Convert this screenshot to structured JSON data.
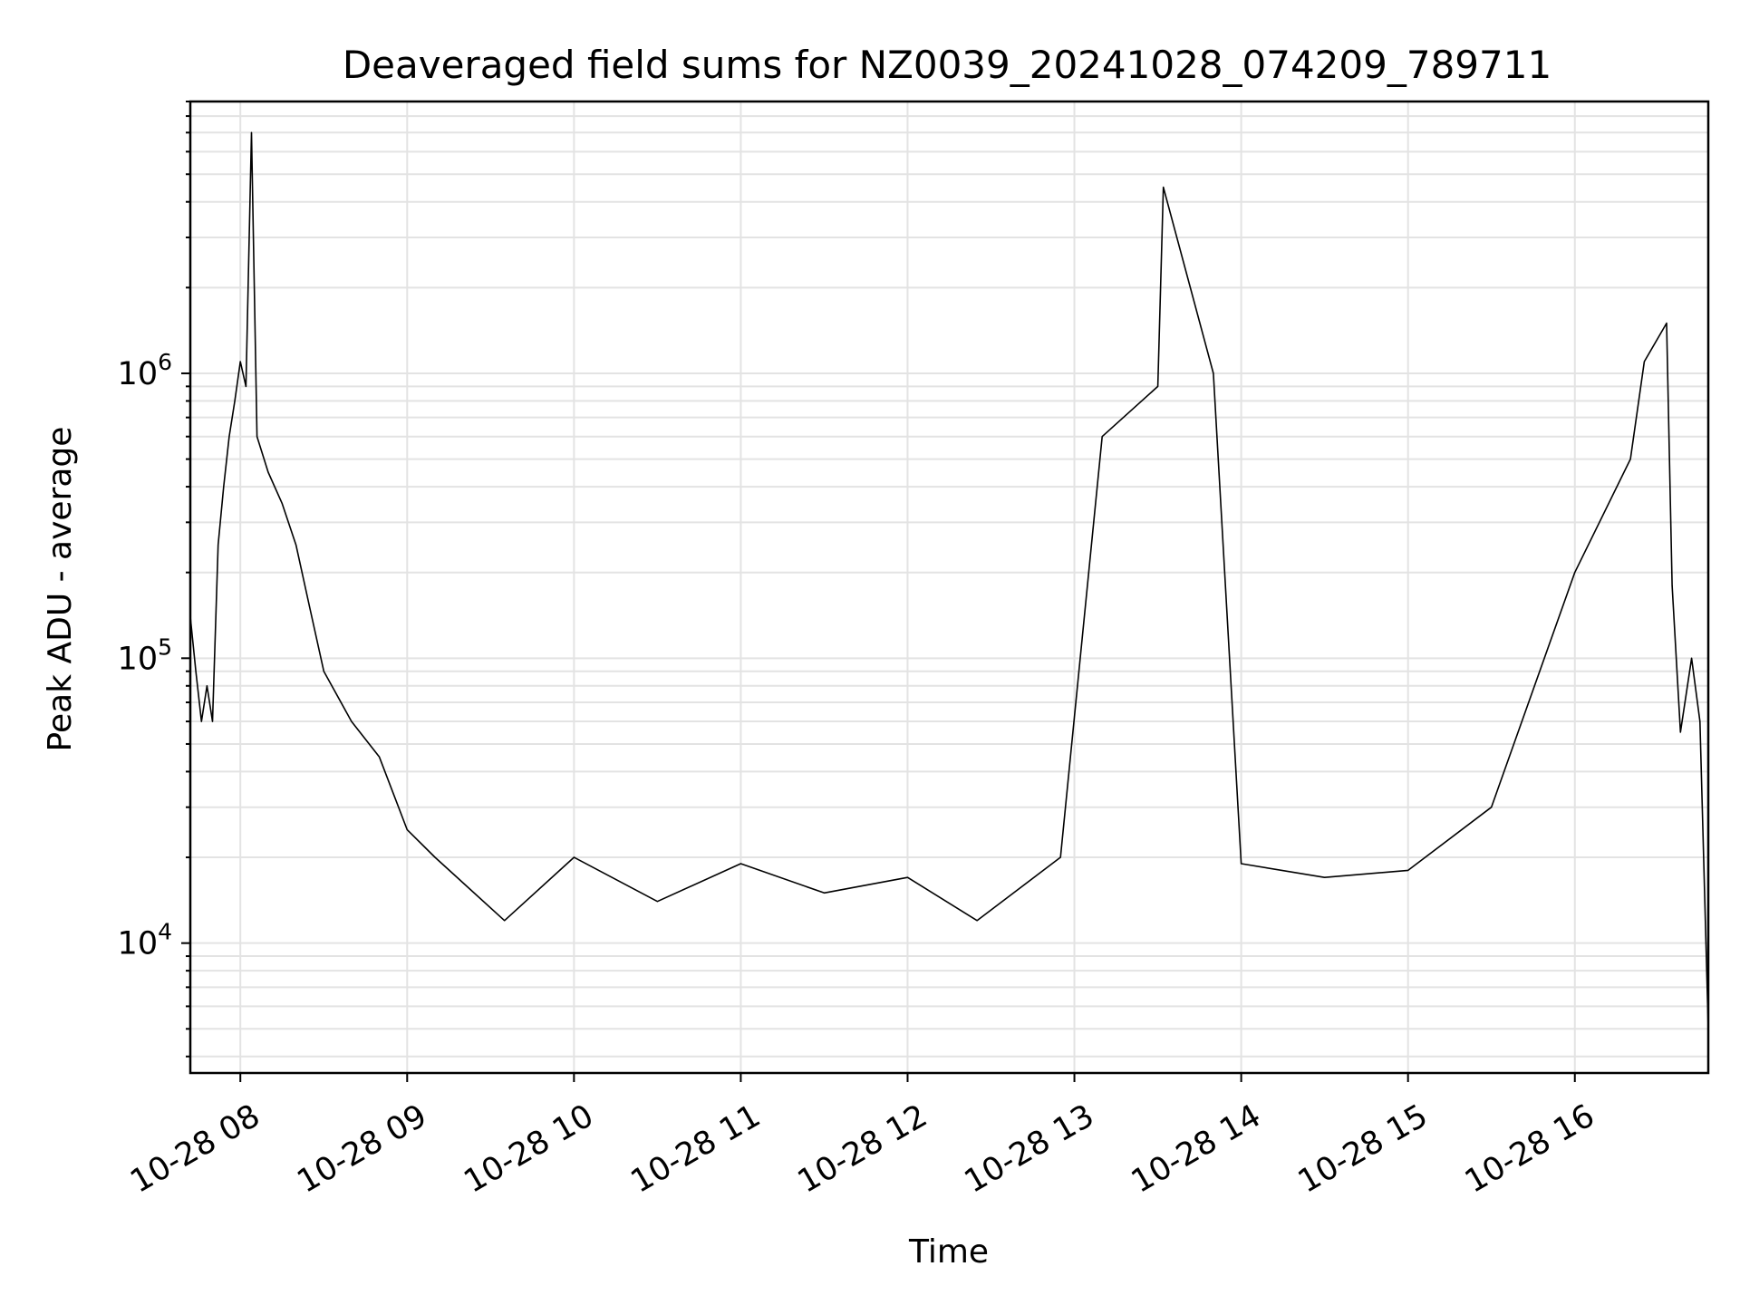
{
  "chart_data": {
    "type": "line",
    "title": "Deaveraged field sums for NZ0039_20241028_074209_789711",
    "xlabel": "Time",
    "ylabel": "Peak ADU - average",
    "yscale": "log",
    "ylim": [
      3500,
      9000000
    ],
    "xlim": [
      "2024-10-28 07:42",
      "2024-10-28 16:48"
    ],
    "grid": true,
    "xticks": [
      "10-28 08",
      "10-28 09",
      "10-28 10",
      "10-28 11",
      "10-28 12",
      "10-28 13",
      "10-28 14",
      "10-28 15",
      "10-28 16"
    ],
    "yticks": [
      {
        "value": 10000,
        "base": "10",
        "exp": "4"
      },
      {
        "value": 100000,
        "base": "10",
        "exp": "5"
      },
      {
        "value": 1000000,
        "base": "10",
        "exp": "6"
      }
    ],
    "series": [
      {
        "color": "#000000",
        "points": [
          [
            "2024-10-28 07:42",
            140000
          ],
          [
            "2024-10-28 07:44",
            90000
          ],
          [
            "2024-10-28 07:46",
            60000
          ],
          [
            "2024-10-28 07:48",
            80000
          ],
          [
            "2024-10-28 07:50",
            60000
          ],
          [
            "2024-10-28 07:52",
            250000
          ],
          [
            "2024-10-28 07:54",
            400000
          ],
          [
            "2024-10-28 07:56",
            600000
          ],
          [
            "2024-10-28 07:58",
            800000
          ],
          [
            "2024-10-28 08:00",
            1100000
          ],
          [
            "2024-10-28 08:02",
            900000
          ],
          [
            "2024-10-28 08:04",
            7000000
          ],
          [
            "2024-10-28 08:06",
            600000
          ],
          [
            "2024-10-28 08:10",
            450000
          ],
          [
            "2024-10-28 08:15",
            350000
          ],
          [
            "2024-10-28 08:20",
            250000
          ],
          [
            "2024-10-28 08:25",
            150000
          ],
          [
            "2024-10-28 08:30",
            90000
          ],
          [
            "2024-10-28 08:40",
            60000
          ],
          [
            "2024-10-28 08:50",
            45000
          ],
          [
            "2024-10-28 09:00",
            25000
          ],
          [
            "2024-10-28 09:10",
            20000
          ],
          [
            "2024-10-28 09:35",
            12000
          ],
          [
            "2024-10-28 10:00",
            20000
          ],
          [
            "2024-10-28 10:30",
            14000
          ],
          [
            "2024-10-28 11:00",
            19000
          ],
          [
            "2024-10-28 11:30",
            15000
          ],
          [
            "2024-10-28 12:00",
            17000
          ],
          [
            "2024-10-28 12:25",
            12000
          ],
          [
            "2024-10-28 12:55",
            20000
          ],
          [
            "2024-10-28 13:10",
            600000
          ],
          [
            "2024-10-28 13:30",
            900000
          ],
          [
            "2024-10-28 13:32",
            4500000
          ],
          [
            "2024-10-28 13:50",
            1000000
          ],
          [
            "2024-10-28 14:00",
            19000
          ],
          [
            "2024-10-28 14:30",
            17000
          ],
          [
            "2024-10-28 15:00",
            18000
          ],
          [
            "2024-10-28 15:30",
            30000
          ],
          [
            "2024-10-28 16:00",
            200000
          ],
          [
            "2024-10-28 16:20",
            500000
          ],
          [
            "2024-10-28 16:25",
            1100000
          ],
          [
            "2024-10-28 16:33",
            1500000
          ],
          [
            "2024-10-28 16:35",
            180000
          ],
          [
            "2024-10-28 16:38",
            55000
          ],
          [
            "2024-10-28 16:42",
            100000
          ],
          [
            "2024-10-28 16:45",
            60000
          ],
          [
            "2024-10-28 16:48",
            5000
          ]
        ]
      }
    ]
  }
}
